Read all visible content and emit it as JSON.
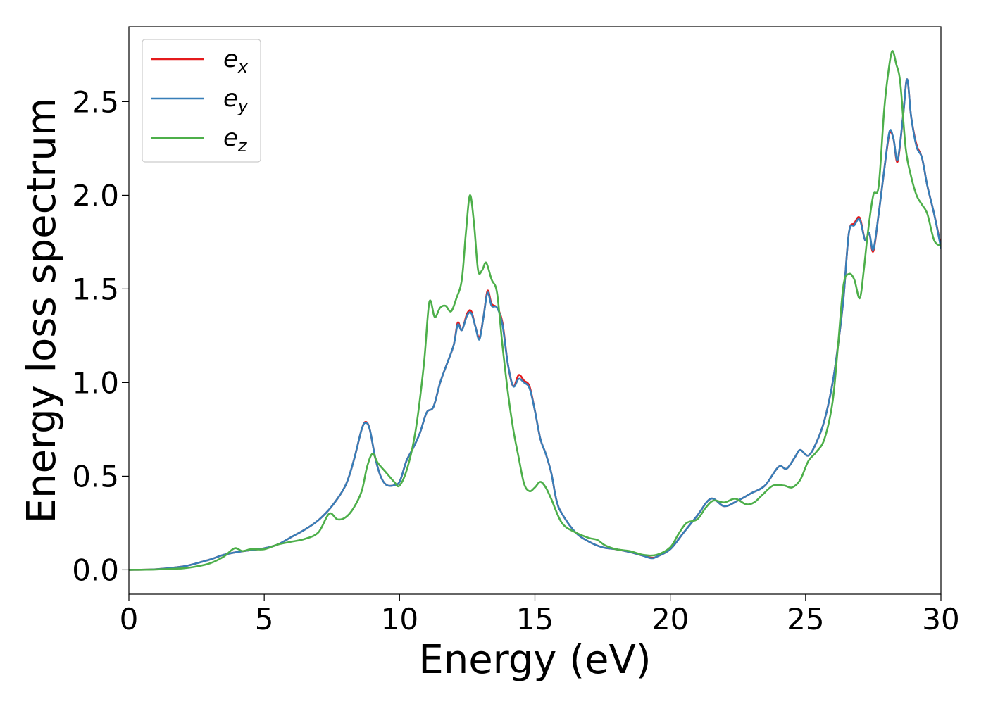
{
  "chart_data": {
    "type": "line",
    "title": "",
    "xlabel": "Energy (eV)",
    "ylabel": "Energy loss spectrum",
    "xlim": [
      0,
      30
    ],
    "ylim": [
      -0.13,
      2.9
    ],
    "xticks": [
      0,
      5,
      10,
      15,
      20,
      25,
      30
    ],
    "yticks": [
      0.0,
      0.5,
      1.0,
      1.5,
      2.0,
      2.5
    ],
    "xtick_labels": [
      "0",
      "5",
      "10",
      "15",
      "20",
      "25",
      "30"
    ],
    "ytick_labels": [
      "0.0",
      "0.5",
      "1.0",
      "1.5",
      "2.0",
      "2.5"
    ],
    "grid": false,
    "legend": "top-left",
    "series": [
      {
        "name": "e_x",
        "label_base": "e",
        "label_sub": "x",
        "color": "#e41a1c",
        "x": [
          0,
          1,
          2,
          2.5,
          3,
          3.5,
          4,
          4.5,
          5,
          5.5,
          6,
          6.5,
          7,
          7.5,
          8,
          8.3,
          8.6,
          8.75,
          8.9,
          9.1,
          9.3,
          9.5,
          9.75,
          10,
          10.25,
          10.5,
          10.75,
          11,
          11.25,
          11.5,
          11.75,
          12,
          12.15,
          12.3,
          12.5,
          12.65,
          12.8,
          12.95,
          13.1,
          13.25,
          13.4,
          13.6,
          13.8,
          14,
          14.2,
          14.4,
          14.6,
          14.8,
          15,
          15.2,
          15.4,
          15.6,
          15.8,
          16,
          16.5,
          17,
          17.5,
          18,
          18.5,
          19,
          19.3,
          19.5,
          20,
          20.5,
          21,
          21.5,
          22,
          22.5,
          23,
          23.5,
          24,
          24.3,
          24.6,
          24.8,
          25.1,
          25.4,
          25.7,
          26,
          26.2,
          26.4,
          26.6,
          26.8,
          27,
          27.2,
          27.35,
          27.5,
          27.7,
          27.9,
          28.1,
          28.25,
          28.4,
          28.6,
          28.75,
          28.9,
          29.1,
          29.3,
          29.5,
          29.75,
          30
        ],
        "y": [
          0,
          0.003,
          0.018,
          0.035,
          0.055,
          0.08,
          0.095,
          0.105,
          0.115,
          0.135,
          0.175,
          0.215,
          0.265,
          0.34,
          0.45,
          0.58,
          0.75,
          0.79,
          0.75,
          0.6,
          0.5,
          0.455,
          0.45,
          0.47,
          0.58,
          0.65,
          0.73,
          0.84,
          0.87,
          1.0,
          1.1,
          1.2,
          1.32,
          1.28,
          1.37,
          1.38,
          1.3,
          1.24,
          1.35,
          1.49,
          1.42,
          1.4,
          1.32,
          1.1,
          0.98,
          1.04,
          1.01,
          0.98,
          0.85,
          0.7,
          0.62,
          0.52,
          0.37,
          0.3,
          0.2,
          0.15,
          0.12,
          0.11,
          0.095,
          0.075,
          0.065,
          0.07,
          0.11,
          0.2,
          0.29,
          0.38,
          0.34,
          0.37,
          0.41,
          0.45,
          0.55,
          0.54,
          0.6,
          0.64,
          0.61,
          0.68,
          0.8,
          1.0,
          1.2,
          1.45,
          1.8,
          1.85,
          1.88,
          1.76,
          1.8,
          1.7,
          1.9,
          2.13,
          2.33,
          2.3,
          2.18,
          2.42,
          2.62,
          2.42,
          2.27,
          2.2,
          2.05,
          1.9,
          1.73
        ]
      },
      {
        "name": "e_y",
        "label_base": "e",
        "label_sub": "y",
        "color": "#377eb8",
        "x": [
          0,
          1,
          2,
          2.5,
          3,
          3.5,
          4,
          4.5,
          5,
          5.5,
          6,
          6.5,
          7,
          7.5,
          8,
          8.3,
          8.6,
          8.75,
          8.9,
          9.1,
          9.3,
          9.5,
          9.75,
          10,
          10.25,
          10.5,
          10.75,
          11,
          11.25,
          11.5,
          11.75,
          12,
          12.15,
          12.3,
          12.5,
          12.65,
          12.8,
          12.95,
          13.1,
          13.25,
          13.4,
          13.6,
          13.8,
          14,
          14.2,
          14.4,
          14.6,
          14.8,
          15,
          15.2,
          15.4,
          15.6,
          15.8,
          16,
          16.5,
          17,
          17.5,
          18,
          18.5,
          19,
          19.3,
          19.5,
          20,
          20.5,
          21,
          21.5,
          22,
          22.5,
          23,
          23.5,
          24,
          24.3,
          24.6,
          24.8,
          25.1,
          25.4,
          25.7,
          26,
          26.2,
          26.4,
          26.6,
          26.8,
          27,
          27.2,
          27.35,
          27.5,
          27.7,
          27.9,
          28.1,
          28.25,
          28.4,
          28.6,
          28.75,
          28.9,
          29.1,
          29.3,
          29.5,
          29.75,
          30
        ],
        "y": [
          0,
          0.003,
          0.018,
          0.035,
          0.055,
          0.08,
          0.095,
          0.105,
          0.115,
          0.135,
          0.175,
          0.215,
          0.265,
          0.34,
          0.45,
          0.58,
          0.75,
          0.785,
          0.75,
          0.6,
          0.5,
          0.455,
          0.45,
          0.47,
          0.58,
          0.65,
          0.73,
          0.84,
          0.87,
          1.0,
          1.1,
          1.2,
          1.31,
          1.28,
          1.36,
          1.37,
          1.3,
          1.23,
          1.35,
          1.48,
          1.41,
          1.4,
          1.31,
          1.1,
          0.98,
          1.02,
          1.0,
          0.97,
          0.85,
          0.7,
          0.62,
          0.52,
          0.37,
          0.3,
          0.2,
          0.15,
          0.12,
          0.11,
          0.095,
          0.075,
          0.062,
          0.07,
          0.11,
          0.2,
          0.29,
          0.38,
          0.34,
          0.37,
          0.41,
          0.45,
          0.55,
          0.54,
          0.6,
          0.64,
          0.61,
          0.68,
          0.8,
          1.0,
          1.2,
          1.45,
          1.8,
          1.84,
          1.87,
          1.76,
          1.8,
          1.71,
          1.9,
          2.13,
          2.34,
          2.3,
          2.19,
          2.42,
          2.62,
          2.42,
          2.26,
          2.2,
          2.05,
          1.9,
          1.72
        ]
      },
      {
        "name": "e_z",
        "label_base": "e",
        "label_sub": "z",
        "color": "#4daf4a",
        "x": [
          0,
          1,
          2,
          2.5,
          3,
          3.5,
          3.9,
          4.2,
          4.5,
          5,
          5.5,
          6,
          6.5,
          7,
          7.4,
          7.7,
          8,
          8.3,
          8.6,
          8.8,
          9,
          9.2,
          9.5,
          9.8,
          10,
          10.3,
          10.6,
          10.9,
          11.1,
          11.3,
          11.5,
          11.7,
          11.9,
          12.1,
          12.3,
          12.45,
          12.6,
          12.75,
          12.9,
          13.05,
          13.2,
          13.4,
          13.6,
          13.8,
          14,
          14.2,
          14.4,
          14.6,
          14.8,
          15,
          15.2,
          15.4,
          15.6,
          16,
          16.5,
          17,
          17.3,
          17.6,
          18,
          18.5,
          19,
          19.5,
          20,
          20.3,
          20.6,
          21,
          21.3,
          21.6,
          22,
          22.4,
          22.8,
          23.1,
          23.4,
          23.8,
          24.2,
          24.5,
          24.8,
          25.1,
          25.4,
          25.7,
          26,
          26.2,
          26.4,
          26.6,
          26.8,
          27,
          27.15,
          27.3,
          27.5,
          27.7,
          27.9,
          28.05,
          28.2,
          28.35,
          28.5,
          28.7,
          28.9,
          29.1,
          29.3,
          29.5,
          29.75,
          30
        ],
        "y": [
          0,
          0.002,
          0.008,
          0.018,
          0.035,
          0.07,
          0.115,
          0.1,
          0.11,
          0.11,
          0.135,
          0.15,
          0.165,
          0.2,
          0.3,
          0.27,
          0.28,
          0.33,
          0.42,
          0.55,
          0.62,
          0.57,
          0.52,
          0.47,
          0.45,
          0.55,
          0.75,
          1.1,
          1.43,
          1.35,
          1.4,
          1.41,
          1.38,
          1.45,
          1.55,
          1.8,
          2.0,
          1.85,
          1.6,
          1.6,
          1.64,
          1.55,
          1.48,
          1.2,
          0.95,
          0.75,
          0.6,
          0.46,
          0.42,
          0.44,
          0.47,
          0.44,
          0.38,
          0.25,
          0.2,
          0.17,
          0.16,
          0.13,
          0.11,
          0.1,
          0.08,
          0.08,
          0.12,
          0.19,
          0.25,
          0.27,
          0.33,
          0.37,
          0.36,
          0.38,
          0.35,
          0.36,
          0.4,
          0.45,
          0.45,
          0.44,
          0.48,
          0.58,
          0.63,
          0.7,
          0.9,
          1.2,
          1.52,
          1.58,
          1.55,
          1.45,
          1.6,
          1.8,
          2.0,
          2.05,
          2.45,
          2.65,
          2.77,
          2.7,
          2.6,
          2.25,
          2.1,
          2.0,
          1.95,
          1.9,
          1.76,
          1.73
        ]
      }
    ]
  }
}
